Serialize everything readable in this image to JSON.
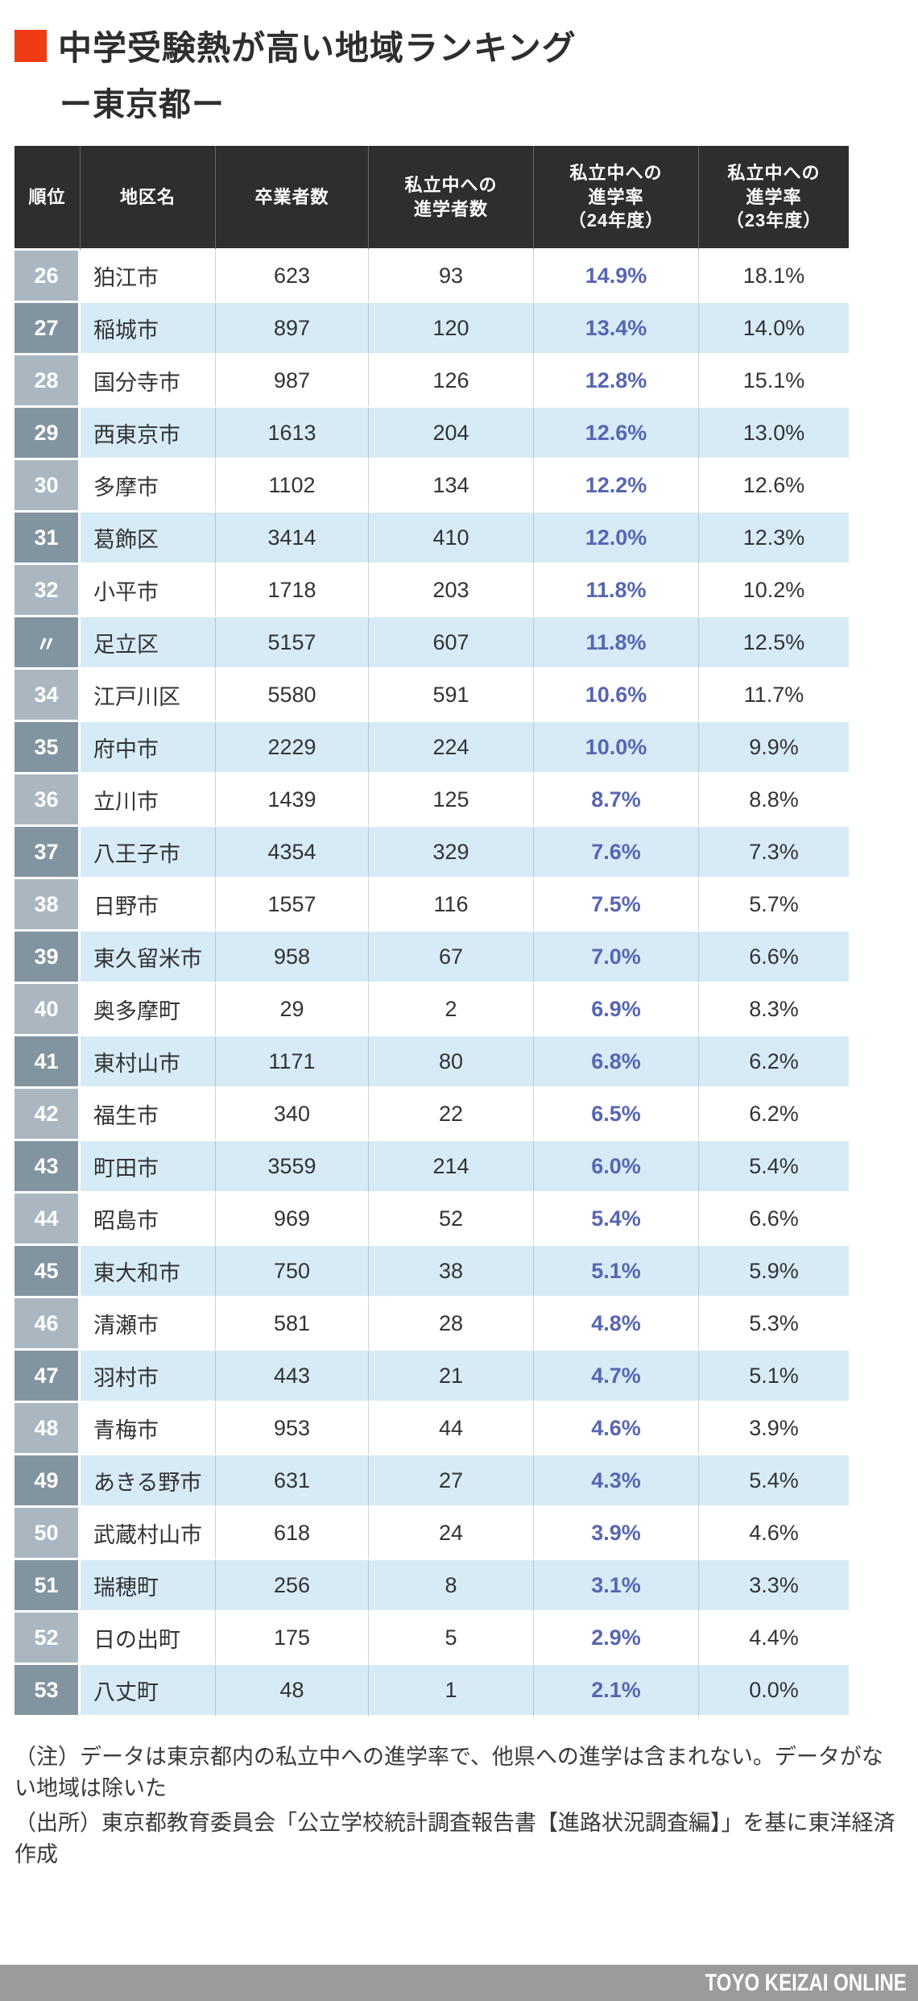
{
  "header": {
    "title": "中学受験熱が高い地域ランキング",
    "subtitle": "ー東京都ー"
  },
  "colors": {
    "accent": "#f03c14",
    "header_bg": "#2e2e2e",
    "row_alt_bg": "#d7ebf7",
    "rank_bg_light": "#aab7c0",
    "rank_bg_dark": "#8294a0",
    "rate24_color": "#5766b2",
    "footer_bg": "#9b9b9b"
  },
  "chart_data": {
    "type": "table",
    "title": "中学受験熱が高い地域ランキング ー東京都ー",
    "columns": [
      "順位",
      "地区名",
      "卒業者数",
      "私立中への\n進学者数",
      "私立中への\n進学率\n（24年度）",
      "私立中への\n進学率\n（23年度）"
    ],
    "column_keys": [
      "rank",
      "district",
      "graduates",
      "advancers",
      "rate24",
      "rate23"
    ],
    "rows": [
      [
        "26",
        "狛江市",
        "623",
        "93",
        "14.9%",
        "18.1%"
      ],
      [
        "27",
        "稲城市",
        "897",
        "120",
        "13.4%",
        "14.0%"
      ],
      [
        "28",
        "国分寺市",
        "987",
        "126",
        "12.8%",
        "15.1%"
      ],
      [
        "29",
        "西東京市",
        "1613",
        "204",
        "12.6%",
        "13.0%"
      ],
      [
        "30",
        "多摩市",
        "1102",
        "134",
        "12.2%",
        "12.6%"
      ],
      [
        "31",
        "葛飾区",
        "3414",
        "410",
        "12.0%",
        "12.3%"
      ],
      [
        "32",
        "小平市",
        "1718",
        "203",
        "11.8%",
        "10.2%"
      ],
      [
        "〃",
        "足立区",
        "5157",
        "607",
        "11.8%",
        "12.5%"
      ],
      [
        "34",
        "江戸川区",
        "5580",
        "591",
        "10.6%",
        "11.7%"
      ],
      [
        "35",
        "府中市",
        "2229",
        "224",
        "10.0%",
        "9.9%"
      ],
      [
        "36",
        "立川市",
        "1439",
        "125",
        "8.7%",
        "8.8%"
      ],
      [
        "37",
        "八王子市",
        "4354",
        "329",
        "7.6%",
        "7.3%"
      ],
      [
        "38",
        "日野市",
        "1557",
        "116",
        "7.5%",
        "5.7%"
      ],
      [
        "39",
        "東久留米市",
        "958",
        "67",
        "7.0%",
        "6.6%"
      ],
      [
        "40",
        "奥多摩町",
        "29",
        "2",
        "6.9%",
        "8.3%"
      ],
      [
        "41",
        "東村山市",
        "1171",
        "80",
        "6.8%",
        "6.2%"
      ],
      [
        "42",
        "福生市",
        "340",
        "22",
        "6.5%",
        "6.2%"
      ],
      [
        "43",
        "町田市",
        "3559",
        "214",
        "6.0%",
        "5.4%"
      ],
      [
        "44",
        "昭島市",
        "969",
        "52",
        "5.4%",
        "6.6%"
      ],
      [
        "45",
        "東大和市",
        "750",
        "38",
        "5.1%",
        "5.9%"
      ],
      [
        "46",
        "清瀬市",
        "581",
        "28",
        "4.8%",
        "5.3%"
      ],
      [
        "47",
        "羽村市",
        "443",
        "21",
        "4.7%",
        "5.1%"
      ],
      [
        "48",
        "青梅市",
        "953",
        "44",
        "4.6%",
        "3.9%"
      ],
      [
        "49",
        "あきる野市",
        "631",
        "27",
        "4.3%",
        "5.4%"
      ],
      [
        "50",
        "武蔵村山市",
        "618",
        "24",
        "3.9%",
        "4.6%"
      ],
      [
        "51",
        "瑞穂町",
        "256",
        "8",
        "3.1%",
        "3.3%"
      ],
      [
        "52",
        "日の出町",
        "175",
        "5",
        "2.9%",
        "4.4%"
      ],
      [
        "53",
        "八丈町",
        "48",
        "1",
        "2.1%",
        "0.0%"
      ]
    ]
  },
  "notes": [
    "（注）データは東京都内の私立中への進学率で、他県への進学は含まれない。データがない地域は除いた",
    "（出所）東京都教育委員会「公立学校統計調査報告書【進路状況調査編】」を基に東洋経済作成"
  ],
  "footer": {
    "brand": "TOYO KEIZAI ONLINE"
  }
}
